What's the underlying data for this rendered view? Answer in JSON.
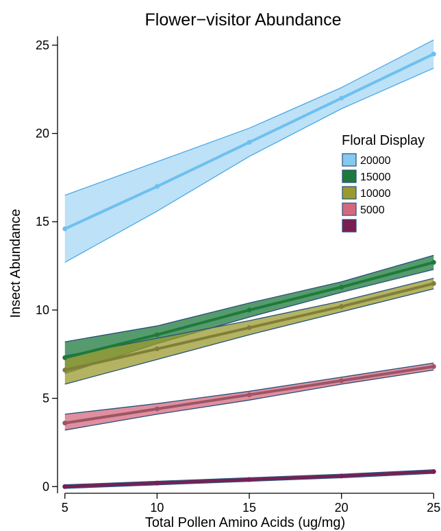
{
  "chart_data": {
    "type": "line",
    "title": "Flower−visitor Abundance",
    "xlabel": "Total Pollen Amino Acids (ug/mg)",
    "ylabel": "Insect Abundance",
    "xlim": [
      4.6,
      25.1
    ],
    "ylim": [
      -0.3,
      25.5
    ],
    "xticks": [
      5,
      10,
      15,
      20,
      25
    ],
    "yticks": [
      0,
      5,
      10,
      15,
      20,
      25
    ],
    "x": [
      5,
      10,
      15,
      20,
      25
    ],
    "grid": false,
    "legend": {
      "title": "Floral Display",
      "position": "right"
    },
    "series": [
      {
        "name": "20000",
        "fill": "#87c8ee",
        "line": "#6ec0ef",
        "edge": "#4aa8e8",
        "values": [
          14.6,
          17.0,
          19.5,
          22.0,
          24.5
        ],
        "lower": [
          12.7,
          15.6,
          18.7,
          21.4,
          23.7
        ],
        "upper": [
          16.5,
          18.4,
          20.3,
          22.6,
          25.3
        ]
      },
      {
        "name": "15000",
        "fill": "#1e7a3c",
        "line": "#1e7a3c",
        "edge": "#264f7a",
        "values": [
          7.3,
          8.6,
          10.0,
          11.3,
          12.7
        ],
        "lower": [
          6.4,
          8.1,
          9.6,
          11.0,
          12.3
        ],
        "upper": [
          8.2,
          9.1,
          10.4,
          11.6,
          13.1
        ]
      },
      {
        "name": "10000",
        "fill": "#9a9a2e",
        "line": "#7f7f3a",
        "edge": "#264f7a",
        "values": [
          6.6,
          7.8,
          9.0,
          10.2,
          11.5
        ],
        "lower": [
          5.8,
          7.2,
          8.6,
          9.9,
          11.2
        ],
        "upper": [
          7.4,
          8.4,
          9.4,
          10.5,
          11.8
        ]
      },
      {
        "name": "5000",
        "fill": "#d4697e",
        "line": "#9c5566",
        "edge": "#264f7a",
        "values": [
          3.6,
          4.4,
          5.2,
          6.0,
          6.8
        ],
        "lower": [
          3.2,
          4.1,
          4.9,
          5.8,
          6.6
        ],
        "upper": [
          4.1,
          4.7,
          5.4,
          6.2,
          7.0
        ]
      },
      {
        "name": "",
        "fill": "#7a1e52",
        "line": "#7a1e52",
        "edge": "#264f7a",
        "values": [
          0.0,
          0.2,
          0.4,
          0.6,
          0.85
        ],
        "lower": [
          -0.1,
          0.1,
          0.3,
          0.5,
          0.75
        ],
        "upper": [
          0.1,
          0.3,
          0.5,
          0.7,
          0.95
        ]
      }
    ]
  }
}
